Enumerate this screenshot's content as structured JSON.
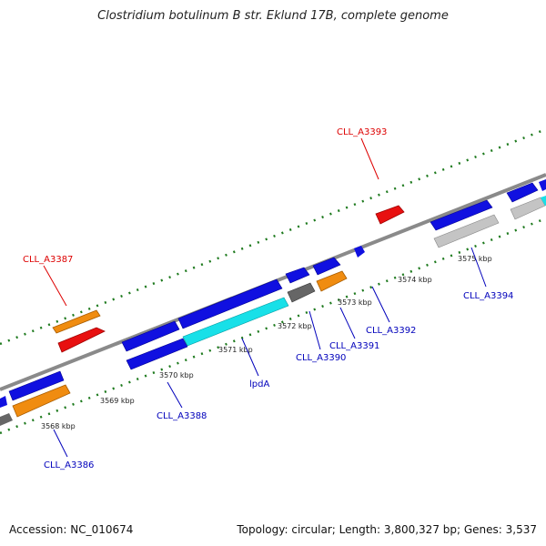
{
  "title": "Clostridium botulinum B str. Eklund 17B, complete genome",
  "footer": {
    "accession": "Accession: NC_010674",
    "topology": "Topology: circular; Length: 3,800,327 bp; Genes: 3,537"
  },
  "colors": {
    "backbone": "#8a8a8a",
    "ticks": "#1e7a1e",
    "cds_blue": "#1010e0",
    "cds_cyan": "#18e0e8",
    "cds_orange": "#f08c10",
    "cds_red": "#e81010",
    "cds_gray": "#666666",
    "cds_lightgray": "#c4c4c4",
    "label_red": "#dd0000",
    "label_blue": "#0000bb"
  },
  "kbp_labels": [
    "3568 kbp",
    "3569 kbp",
    "3570 kbp",
    "3571 kbp",
    "3572 kbp",
    "3573 kbp",
    "3574 kbp",
    "3575 kbp"
  ],
  "gene_labels_top": [
    "CLL_A3387",
    "CLL_A3393"
  ],
  "gene_labels_bottom": [
    "CLL_A3386",
    "CLL_A3388",
    "lpdA",
    "CLL_A3390",
    "CLL_A3391",
    "CLL_A3392",
    "CLL_A3394"
  ]
}
